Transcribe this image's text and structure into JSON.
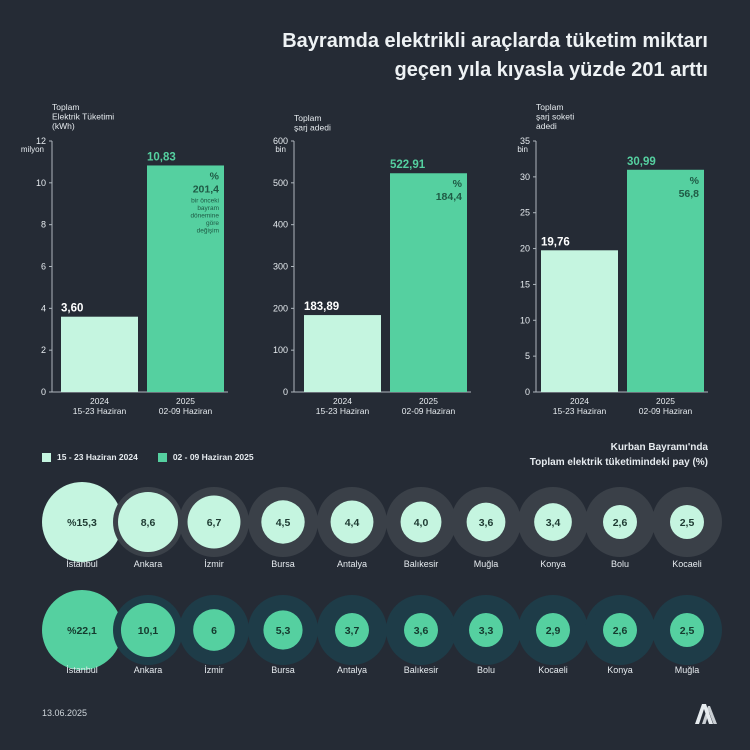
{
  "title_lines": [
    "Bayramda elektrikli araçlarda tüketim miktarı",
    "geçen yıla kıyasla yüzde 201 arttı"
  ],
  "colors": {
    "background": "#252b35",
    "bar_2024": "#c5f5e0",
    "bar_2025": "#55d0a0",
    "text_dark": "#1f5a45"
  },
  "chart_data": [
    {
      "type": "bar",
      "ylabel_lines": [
        "Toplam",
        "Elektrik Tüketimi",
        "(kWh)"
      ],
      "unit_label": "milyon",
      "ylim": [
        0,
        12
      ],
      "yticks": [
        0,
        2,
        4,
        6,
        8,
        10,
        12
      ],
      "categories": [
        "2024\n15-23 Haziran",
        "2025\n02-09 Haziran"
      ],
      "values": [
        3.6,
        10.83
      ],
      "value_labels": [
        "3,60",
        "10,83"
      ],
      "change_lines": [
        "%",
        "201,4"
      ],
      "note_lines": [
        "bir önceki",
        "bayram",
        "dönemine",
        "göre",
        "değişim"
      ]
    },
    {
      "type": "bar",
      "ylabel_lines": [
        "Toplam",
        "şarj adedi"
      ],
      "unit_label": "bin",
      "ylim": [
        0,
        600
      ],
      "yticks": [
        0,
        100,
        200,
        300,
        400,
        500,
        600
      ],
      "categories": [
        "2024\n15-23 Haziran",
        "2025\n02-09 Haziran"
      ],
      "values": [
        183.89,
        522.91
      ],
      "value_labels": [
        "183,89",
        "522,91"
      ],
      "change_lines": [
        "%",
        "184,4"
      ],
      "note_lines": []
    },
    {
      "type": "bar",
      "ylabel_lines": [
        "Toplam",
        "şarj soketi",
        "adedi"
      ],
      "unit_label": "bin",
      "ylim": [
        0,
        35
      ],
      "yticks": [
        0,
        5,
        10,
        15,
        20,
        25,
        30,
        35
      ],
      "categories": [
        "2024\n15-23 Haziran",
        "2025\n02-09 Haziran"
      ],
      "values": [
        19.76,
        30.99
      ],
      "value_labels": [
        "19,76",
        "30,99"
      ],
      "change_lines": [
        "%",
        "56,8"
      ],
      "note_lines": []
    },
    {
      "type": "bubble",
      "series_name": "15 - 23 Haziran 2024",
      "cities": [
        "İstanbul",
        "Ankara",
        "İzmir",
        "Bursa",
        "Antalya",
        "Balıkesir",
        "Muğla",
        "Konya",
        "Bolu",
        "Kocaeli"
      ],
      "values": [
        15.3,
        8.6,
        6.7,
        4.5,
        4.4,
        4.0,
        3.6,
        3.4,
        2.6,
        2.5
      ],
      "value_labels": [
        "%15,3",
        "8,6",
        "6,7",
        "4,5",
        "4,4",
        "4,0",
        "3,6",
        "3,4",
        "2,6",
        "2,5"
      ]
    },
    {
      "type": "bubble",
      "series_name": "02 - 09 Haziran 2025",
      "cities": [
        "İstanbul",
        "Ankara",
        "İzmir",
        "Bursa",
        "Antalya",
        "Balıkesir",
        "Bolu",
        "Kocaeli",
        "Konya",
        "Muğla"
      ],
      "values": [
        22.1,
        10.1,
        6,
        5.3,
        3.7,
        3.6,
        3.3,
        2.9,
        2.6,
        2.5
      ],
      "value_labels": [
        "%22,1",
        "10,1",
        "6",
        "5,3",
        "3,7",
        "3,6",
        "3,3",
        "2,9",
        "2,6",
        "2,5"
      ]
    }
  ],
  "legend": {
    "label_2024": "15 - 23 Haziran 2024",
    "label_2025": "02 - 09 Haziran 2025"
  },
  "pay_title_lines": [
    "Kurban Bayramı'nda",
    "Toplam elektrik tüketimindeki pay (%)"
  ],
  "date": "13.06.2025",
  "logo_text": "AA"
}
